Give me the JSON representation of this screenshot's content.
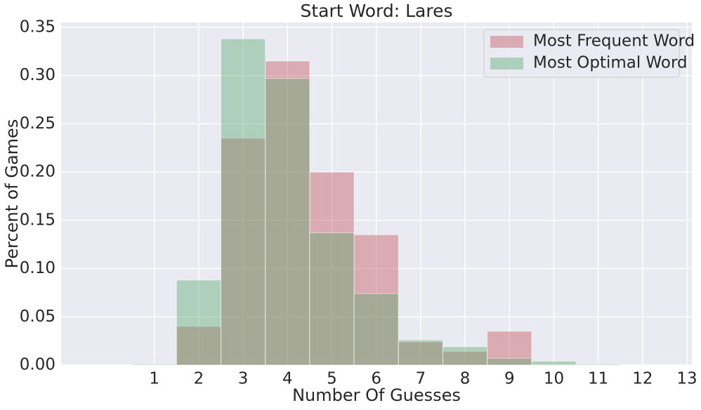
{
  "chart_data": {
    "type": "histogram",
    "title": "Start Word: Lares",
    "xlabel": "Number Of Guesses",
    "ylabel": "Percent of Games",
    "bins": [
      0.5,
      1.5,
      2.5,
      3.5,
      4.5,
      5.5,
      6.5,
      7.5,
      8.5,
      9.5,
      10.5,
      11.5,
      12.5
    ],
    "series": [
      {
        "name": "Most Frequent Word",
        "color": "#c44e52",
        "values": [
          0,
          0.04,
          0.235,
          0.315,
          0.2,
          0.135,
          0.024,
          0.014,
          0.035,
          0,
          0,
          0
        ]
      },
      {
        "name": "Most Optimal Word",
        "color": "#55a868",
        "values": [
          0.001,
          0.088,
          0.338,
          0.297,
          0.137,
          0.074,
          0.026,
          0.019,
          0.007,
          0.004,
          0.001,
          0
        ]
      }
    ],
    "xlim": [
      -1.1,
      13.11
    ],
    "ylim": [
      0,
      0.355
    ],
    "xticks": [
      1,
      2,
      3,
      4,
      5,
      6,
      7,
      8,
      9,
      10,
      11,
      12,
      13
    ],
    "yticks": [
      {
        "value": 0,
        "label": "0.00"
      },
      {
        "value": 0.05,
        "label": "0.05"
      },
      {
        "value": 0.1,
        "label": "0.10"
      },
      {
        "value": 0.15,
        "label": "0.15"
      },
      {
        "value": 0.2,
        "label": "0.20"
      },
      {
        "value": 0.25,
        "label": "0.25"
      },
      {
        "value": 0.3,
        "label": "0.30"
      },
      {
        "value": 0.35,
        "label": "0.35"
      }
    ],
    "grid": true,
    "legend": "upper right",
    "alpha": 0.4
  }
}
